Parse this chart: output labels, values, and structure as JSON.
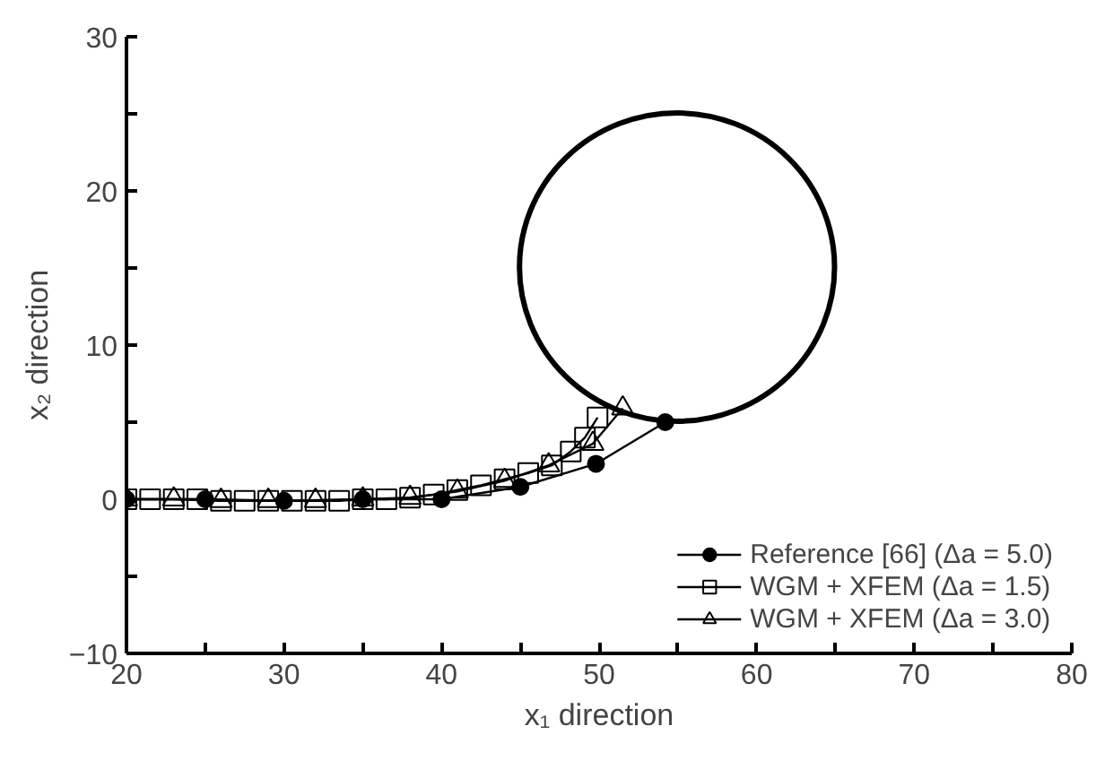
{
  "chart_data": {
    "type": "line",
    "xlabel": "x₁ direction",
    "ylabel": "x₂ direction",
    "xlim": [
      20,
      80
    ],
    "xticks": [
      20,
      {
        "value": 25,
        "label": null
      },
      30,
      {
        "value": 35,
        "label": null
      },
      40,
      {
        "value": 45,
        "label": null
      },
      50,
      {
        "value": 55,
        "label": null
      },
      60,
      {
        "value": 65,
        "label": null
      },
      70,
      {
        "value": 75,
        "label": null
      },
      80
    ],
    "ylim": [
      -10,
      30
    ],
    "yticks": [
      -10,
      {
        "value": -5,
        "label": null
      },
      0,
      {
        "value": 5,
        "label": null
      },
      10,
      {
        "value": 15,
        "label": null
      },
      20,
      {
        "value": 25,
        "label": null
      },
      30
    ],
    "grid": false,
    "legend": "bottom right",
    "line_style": "solid",
    "series": [
      {
        "name": "Reference [66] (Δa = 5.0)",
        "color": "#000000",
        "marker": "circle",
        "x": [
          20,
          25,
          30,
          35,
          40,
          45,
          49.8,
          54.2
        ],
        "values": [
          0,
          0,
          -0.1,
          0,
          0,
          0.8,
          2.3,
          5.0
        ]
      },
      {
        "name": "WGM + XFEM (Δa = 1.5)",
        "color": "#000000",
        "marker": "square",
        "x": [
          20,
          21.5,
          23,
          24.5,
          26,
          27.5,
          29,
          30.5,
          32,
          33.5,
          35,
          36.5,
          38,
          39.5,
          41,
          42.5,
          44,
          45.5,
          47,
          48.2,
          49.1,
          49.9
        ],
        "values": [
          0,
          0,
          0,
          0,
          -0.1,
          -0.1,
          -0.1,
          -0.1,
          -0.1,
          -0.1,
          0,
          0,
          0.1,
          0.3,
          0.6,
          0.9,
          1.3,
          1.7,
          2.2,
          3.1,
          4.0,
          5.3
        ]
      },
      {
        "name": "WGM + XFEM (Δa = 3.0)",
        "color": "#000000",
        "marker": "triangle",
        "x": [
          20,
          23,
          26,
          29,
          32,
          35,
          38,
          41,
          44,
          46.8,
          49.6,
          51.5
        ],
        "values": [
          0,
          0,
          -0.1,
          -0.1,
          -0.1,
          0,
          0.1,
          0.5,
          1.2,
          2.2,
          3.6,
          5.9
        ]
      }
    ]
  }
}
